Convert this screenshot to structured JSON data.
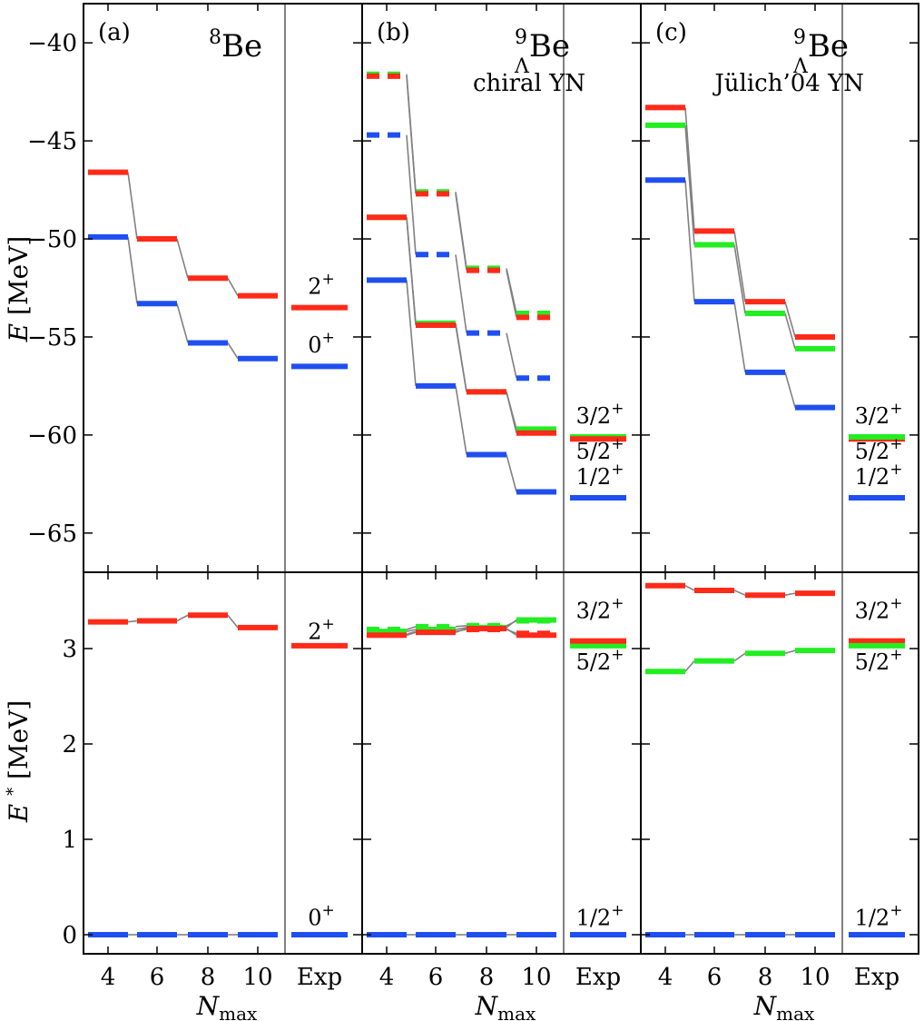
{
  "colors": {
    "red": "#ff2a18",
    "green": "#22ee22",
    "blue": "#1f4ff0",
    "connector": "#808080",
    "frame": "#000000"
  },
  "y_axis": {
    "top_label_var": "E",
    "top_label_unit": "[MeV]",
    "bottom_label_var": "E",
    "bottom_label_sup": "*",
    "bottom_label_unit": "[MeV]",
    "top_ticks": [
      "−40",
      "−45",
      "−50",
      "−55",
      "−60",
      "−65"
    ],
    "bottom_ticks": [
      "3",
      "2",
      "1",
      "0"
    ]
  },
  "x_axis": {
    "label_var": "N",
    "label_sub": "max",
    "ticks": [
      "4",
      "6",
      "8",
      "10"
    ],
    "exp_label": "Exp"
  },
  "chart_data": {
    "type": "level-scheme",
    "top_ylim": [
      -67,
      -38
    ],
    "bottom_ylim": [
      -0.2,
      3.8
    ],
    "nmax": [
      4,
      6,
      8,
      10
    ],
    "panels": [
      {
        "tag": "(a)",
        "nucleus": {
          "mass": "8",
          "hyp": "",
          "sym": "Be"
        },
        "interaction": "",
        "top": {
          "series": [
            {
              "color": "red",
              "values": [
                -46.6,
                -50.0,
                -52.0,
                -52.9
              ],
              "exp": -53.5
            },
            {
              "color": "blue",
              "values": [
                -49.9,
                -53.3,
                -55.3,
                -56.1
              ],
              "exp": -56.5
            }
          ],
          "exp_labels": [
            {
              "base": "2",
              "sup": "+",
              "at": -52.8
            },
            {
              "base": "0",
              "sup": "+",
              "at": -55.8
            }
          ]
        },
        "bottom": {
          "series": [
            {
              "color": "red",
              "values": [
                3.28,
                3.29,
                3.35,
                3.22
              ],
              "exp": 3.03
            },
            {
              "color": "blue",
              "values": [
                0,
                0,
                0,
                0
              ],
              "exp": 0
            }
          ],
          "exp_labels": [
            {
              "base": "2",
              "sup": "+",
              "at": 3.1
            },
            {
              "base": "0",
              "sup": "+",
              "at": 0.1
            }
          ]
        }
      },
      {
        "tag": "(b)",
        "nucleus": {
          "mass": "9",
          "hyp": "Λ",
          "sym": "Be"
        },
        "interaction": "chiral YN",
        "top": {
          "series": [
            {
              "color": "green",
              "values": [
                -41.6,
                -47.6,
                -51.5,
                -53.8
              ],
              "exp": -60.1,
              "dashed": true
            },
            {
              "color": "red",
              "values": [
                -41.7,
                -47.7,
                -51.6,
                -54.0
              ],
              "dashed": true
            },
            {
              "color": "blue",
              "values": [
                -44.7,
                -50.8,
                -54.8,
                -57.1
              ],
              "dashed": true
            },
            {
              "color": "green",
              "values": [
                -48.9,
                -54.3,
                -57.8,
                -59.7
              ]
            },
            {
              "color": "red",
              "values": [
                -48.9,
                -54.4,
                -57.8,
                -59.9
              ],
              "exp": -60.2
            },
            {
              "color": "blue",
              "values": [
                -52.1,
                -57.5,
                -61.0,
                -62.9
              ],
              "exp": -63.2
            }
          ],
          "exp_labels": [
            {
              "base": "3/2",
              "sup": "+",
              "at": -59.4
            },
            {
              "base": "5/2",
              "sup": "+",
              "at": -61.2
            },
            {
              "base": "1/2",
              "sup": "+",
              "at": -62.5
            }
          ]
        },
        "bottom": {
          "series": [
            {
              "color": "green",
              "values": [
                3.2,
                3.23,
                3.24,
                3.29
              ],
              "exp": 3.03,
              "dashed": true
            },
            {
              "color": "red",
              "values": [
                3.15,
                3.18,
                3.2,
                3.16
              ],
              "exp": 3.08,
              "dashed": true
            },
            {
              "color": "green",
              "values": [
                3.18,
                3.2,
                3.22,
                3.3
              ]
            },
            {
              "color": "red",
              "values": [
                3.14,
                3.17,
                3.21,
                3.14
              ]
            },
            {
              "color": "blue",
              "values": [
                0,
                0,
                0,
                0
              ],
              "exp": 0
            }
          ],
          "exp_labels": [
            {
              "base": "3/2",
              "sup": "+",
              "at": 3.32
            },
            {
              "base": "5/2",
              "sup": "+",
              "at": 2.78
            },
            {
              "base": "1/2",
              "sup": "+",
              "at": 0.1
            }
          ]
        }
      },
      {
        "tag": "(c)",
        "nucleus": {
          "mass": "9",
          "hyp": "Λ",
          "sym": "Be"
        },
        "interaction": "Jülich’04 YN",
        "top": {
          "series": [
            {
              "color": "red",
              "values": [
                -43.3,
                -49.6,
                -53.2,
                -55.0
              ],
              "exp": -60.2
            },
            {
              "color": "green",
              "values": [
                -44.2,
                -50.3,
                -53.8,
                -55.6
              ],
              "exp": -60.1
            },
            {
              "color": "blue",
              "values": [
                -47.0,
                -53.2,
                -56.8,
                -58.6
              ],
              "exp": -63.2
            }
          ],
          "exp_labels": [
            {
              "base": "3/2",
              "sup": "+",
              "at": -59.4
            },
            {
              "base": "5/2",
              "sup": "+",
              "at": -61.2
            },
            {
              "base": "1/2",
              "sup": "+",
              "at": -62.5
            }
          ]
        },
        "bottom": {
          "series": [
            {
              "color": "red",
              "values": [
                3.66,
                3.61,
                3.56,
                3.58
              ],
              "exp": 3.08
            },
            {
              "color": "green",
              "values": [
                2.76,
                2.87,
                2.95,
                2.98
              ],
              "exp": 3.03
            },
            {
              "color": "blue",
              "values": [
                0,
                0,
                0,
                0
              ],
              "exp": 0
            }
          ],
          "exp_labels": [
            {
              "base": "3/2",
              "sup": "+",
              "at": 3.32
            },
            {
              "base": "5/2",
              "sup": "+",
              "at": 2.78
            },
            {
              "base": "1/2",
              "sup": "+",
              "at": 0.1
            }
          ]
        }
      }
    ]
  }
}
